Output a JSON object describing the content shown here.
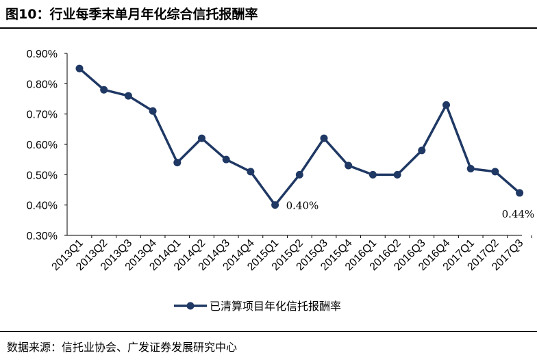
{
  "figure": {
    "title": "图10：行业每季末单月年化综合信托报酬率",
    "source": "数据来源：信托业协会、广发证券发展研究中心"
  },
  "chart_data": {
    "type": "line",
    "title": "",
    "xlabel": "",
    "ylabel": "",
    "categories": [
      "2013Q1",
      "2013Q2",
      "2013Q3",
      "2013Q4",
      "2014Q1",
      "2014Q2",
      "2014Q3",
      "2014Q4",
      "2015Q1",
      "2015Q2",
      "2015Q3",
      "2015Q4",
      "2016Q1",
      "2016Q2",
      "2016Q3",
      "2016Q4",
      "2017Q1",
      "2017Q2",
      "2017Q3"
    ],
    "series": [
      {
        "name": "已清算项目年化信托报酬率",
        "values": [
          0.85,
          0.78,
          0.76,
          0.71,
          0.54,
          0.62,
          0.55,
          0.51,
          0.4,
          0.5,
          0.62,
          0.53,
          0.5,
          0.5,
          0.58,
          0.73,
          0.52,
          0.51,
          0.44
        ],
        "color": "#1f3864"
      }
    ],
    "yticks": [
      "0.90%",
      "0.80%",
      "0.70%",
      "0.60%",
      "0.50%",
      "0.40%",
      "0.30%"
    ],
    "ylim": [
      0.3,
      0.9
    ],
    "grid": false,
    "legend": "bottom",
    "annotations": [
      {
        "category": "2015Q1",
        "text": "0.40%"
      },
      {
        "category": "2017Q3",
        "text": "0.44%"
      }
    ]
  }
}
